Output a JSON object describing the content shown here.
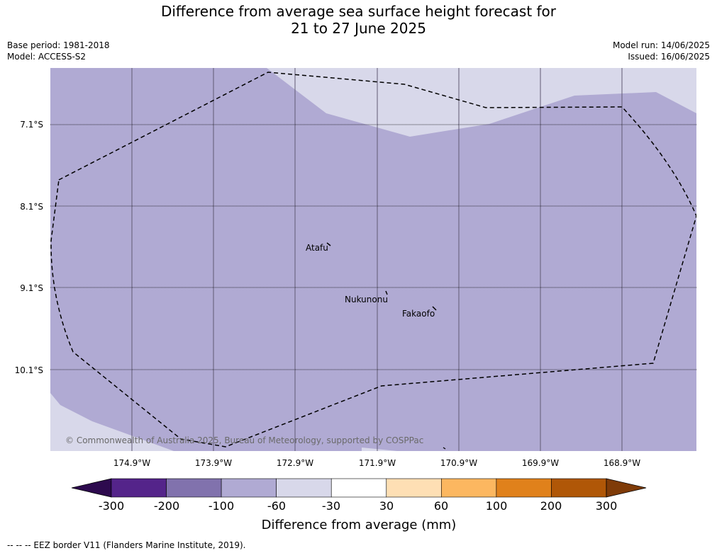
{
  "title": {
    "line1": "Difference from average sea surface height forecast for",
    "line2": "21 to 27 June 2025"
  },
  "meta": {
    "base_period": "Base period: 1981-2018",
    "model": "Model: ACCESS-S2",
    "model_run": "Model run: 14/06/2025",
    "issued": "Issued: 16/06/2025"
  },
  "map": {
    "lat_labels": [
      "7.1°S",
      "8.1°S",
      "9.1°S",
      "10.1°S"
    ],
    "lon_labels": [
      "174.9°W",
      "173.9°W",
      "172.9°W",
      "171.9°W",
      "170.9°W",
      "169.9°W",
      "168.9°W"
    ],
    "places": {
      "atafu": "Atafu",
      "nukunonu": "Nukunonu",
      "fakaofo": "Fakaofo"
    },
    "copyright": "© Commonwealth of Australia 2025, Bureau of Meteorology, supported by COSPPac",
    "colors": {
      "anomaly_-100_-60": "#b0aad3",
      "anomaly_-60_-30": "#d8d8ea"
    }
  },
  "colorbar": {
    "title": "Difference from average (mm)",
    "ticks": [
      "-300",
      "-200",
      "-100",
      "-60",
      "-30",
      "30",
      "60",
      "100",
      "200",
      "300"
    ],
    "colors": [
      "#2d0a4e",
      "#54248a",
      "#8172ad",
      "#b0aad3",
      "#d8d8ea",
      "#ffffff",
      "#fedfb4",
      "#fcb760",
      "#e0811b",
      "#b05707",
      "#7f3b08"
    ]
  },
  "footnote": "--  --  -- EEZ border V11 (Flanders Marine Institute, 2019)."
}
